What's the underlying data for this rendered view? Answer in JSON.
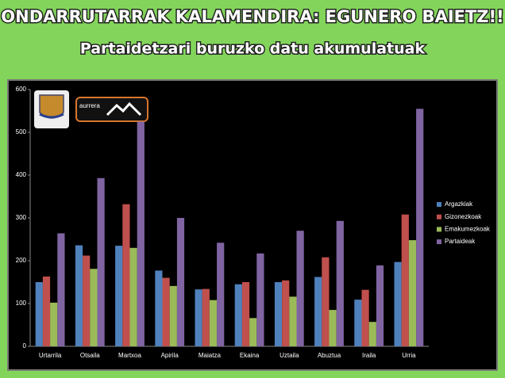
{
  "chart_data": {
    "type": "bar",
    "title": "ONDARRUTARRAK KALAMENDIRA: EGUNERO BAIETZ!!",
    "subtitle": "Partaidetzari buruzko datu akumulatuak",
    "categories": [
      "Urtarrila",
      "Otsaila",
      "Martxoa",
      "Apirila",
      "Maiatza",
      "Ekaina",
      "Uztaila",
      "Abuztua",
      "Iraila",
      "Urria"
    ],
    "series": [
      {
        "name": "Argazkiak",
        "color": "#4f81bd",
        "values": [
          150,
          236,
          235,
          177,
          133,
          145,
          150,
          162,
          109,
          197
        ]
      },
      {
        "name": "Gizonezkoak",
        "color": "#c0504d",
        "values": [
          163,
          212,
          332,
          160,
          134,
          150,
          154,
          208,
          132,
          308
        ]
      },
      {
        "name": "Emakumezkoak",
        "color": "#9bbb59",
        "values": [
          102,
          181,
          230,
          141,
          108,
          66,
          116,
          85,
          57,
          248
        ]
      },
      {
        "name": "Partaideak",
        "color": "#8064a2",
        "values": [
          264,
          393,
          525,
          300,
          242,
          217,
          270,
          293,
          189,
          555
        ]
      }
    ],
    "ylim": [
      0,
      600
    ],
    "yticks": [
      0,
      100,
      200,
      300,
      400,
      500,
      600
    ],
    "grid": false,
    "legend": "right"
  },
  "logo": {
    "text": "aurrera"
  }
}
